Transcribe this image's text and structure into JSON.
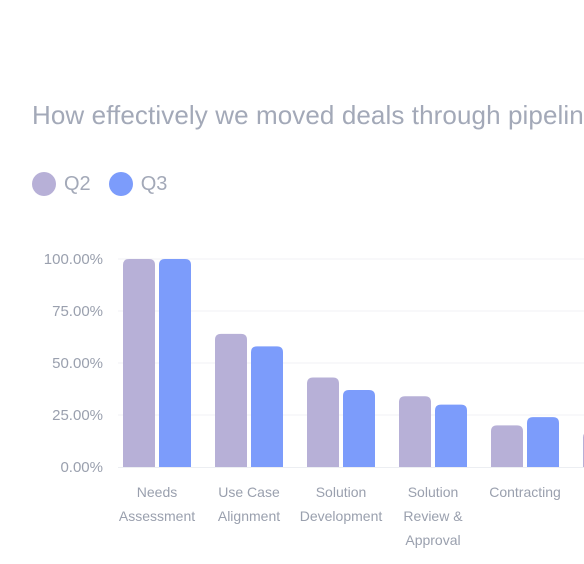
{
  "chart_data": {
    "type": "bar",
    "title": "How effectively we moved deals through pipeline",
    "categories": [
      [
        "Needs",
        "Assessment"
      ],
      [
        "Use Case",
        "Alignment"
      ],
      [
        "Solution",
        "Development"
      ],
      [
        "Solution",
        "Review &",
        "Approval"
      ],
      [
        "Contracting"
      ],
      [
        ""
      ]
    ],
    "series": [
      {
        "name": "Q2",
        "color": "#b7b0d7",
        "values": [
          100,
          64,
          43,
          34,
          20,
          17
        ]
      },
      {
        "name": "Q3",
        "color": "#7c9cfb",
        "values": [
          100,
          58,
          37,
          30,
          24,
          0
        ]
      }
    ],
    "y_ticks": [
      "0.00%",
      "25.00%",
      "50.00%",
      "75.00%",
      "100.00%"
    ],
    "ylim": [
      0,
      100
    ],
    "grid": true,
    "legend_position": "top-left"
  }
}
